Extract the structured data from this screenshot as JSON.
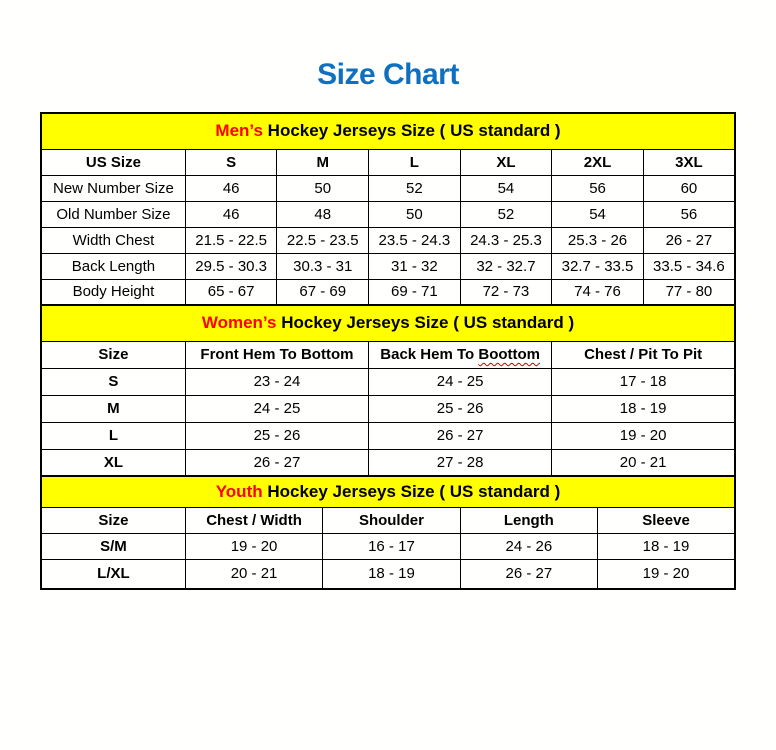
{
  "page": {
    "title": "Size Chart"
  },
  "colors": {
    "title_blue": "#0F70C0",
    "accent_red": "#FF0000",
    "band_yellow": "#FFFF00",
    "border_black": "#000000"
  },
  "sections": [
    {
      "id": "mens",
      "heading_accent": "Men’s",
      "heading_rest": " Hockey Jerseys Size ( US standard )",
      "bold_row_labels": false,
      "columns": [
        {
          "label": "US Size"
        },
        {
          "label": "S"
        },
        {
          "label": "M"
        },
        {
          "label": "L"
        },
        {
          "label": "XL"
        },
        {
          "label": "2XL"
        },
        {
          "label": "3XL"
        }
      ],
      "rows": [
        {
          "label": "New Number Size",
          "values": [
            "46",
            "50",
            "52",
            "54",
            "56",
            "60"
          ]
        },
        {
          "label": "Old Number Size",
          "values": [
            "46",
            "48",
            "50",
            "52",
            "54",
            "56"
          ]
        },
        {
          "label": "Width Chest",
          "values": [
            "21.5 - 22.5",
            "22.5 - 23.5",
            "23.5 - 24.3",
            "24.3 - 25.3",
            "25.3 - 26",
            "26 - 27"
          ]
        },
        {
          "label": "Back Length",
          "values": [
            "29.5 - 30.3",
            "30.3 - 31",
            "31 - 32",
            "32 - 32.7",
            "32.7 - 33.5",
            "33.5 - 34.6"
          ]
        },
        {
          "label": "Body Height",
          "values": [
            "65 - 67",
            "67 - 69",
            "69 - 71",
            "72 - 73",
            "74 - 76",
            "77 - 80"
          ]
        }
      ]
    },
    {
      "id": "womens",
      "heading_accent": "Women’s",
      "heading_rest": " Hockey Jerseys Size ( US standard )",
      "bold_row_labels": true,
      "columns": [
        {
          "label": "Size"
        },
        {
          "label": "Front Hem To Bottom"
        },
        {
          "label": "Back Hem To ",
          "wavy_label": "Boottom"
        },
        {
          "label": "Chest / Pit To Pit"
        }
      ],
      "rows": [
        {
          "label": "S",
          "values": [
            "23 - 24",
            "24 - 25",
            "17 - 18"
          ]
        },
        {
          "label": "M",
          "values": [
            "24 - 25",
            "25 - 26",
            "18 - 19"
          ]
        },
        {
          "label": "L",
          "values": [
            "25 - 26",
            "26 - 27",
            "19 - 20"
          ]
        },
        {
          "label": "XL",
          "values": [
            "26 - 27",
            "27 - 28",
            "20 - 21"
          ]
        }
      ]
    },
    {
      "id": "youth",
      "heading_accent": "Youth",
      "heading_rest": " Hockey Jerseys Size ( US standard )",
      "bold_row_labels": true,
      "columns": [
        {
          "label": "Size"
        },
        {
          "label": "Chest / Width"
        },
        {
          "label": "Shoulder"
        },
        {
          "label": "Length"
        },
        {
          "label": "Sleeve"
        }
      ],
      "rows": [
        {
          "label": "S/M",
          "values": [
            "19 - 20",
            "16 - 17",
            "24 - 26",
            "18 - 19"
          ]
        },
        {
          "label": "L/XL",
          "values": [
            "20 - 21",
            "18 - 19",
            "26 - 27",
            "19 - 20"
          ]
        }
      ]
    }
  ]
}
